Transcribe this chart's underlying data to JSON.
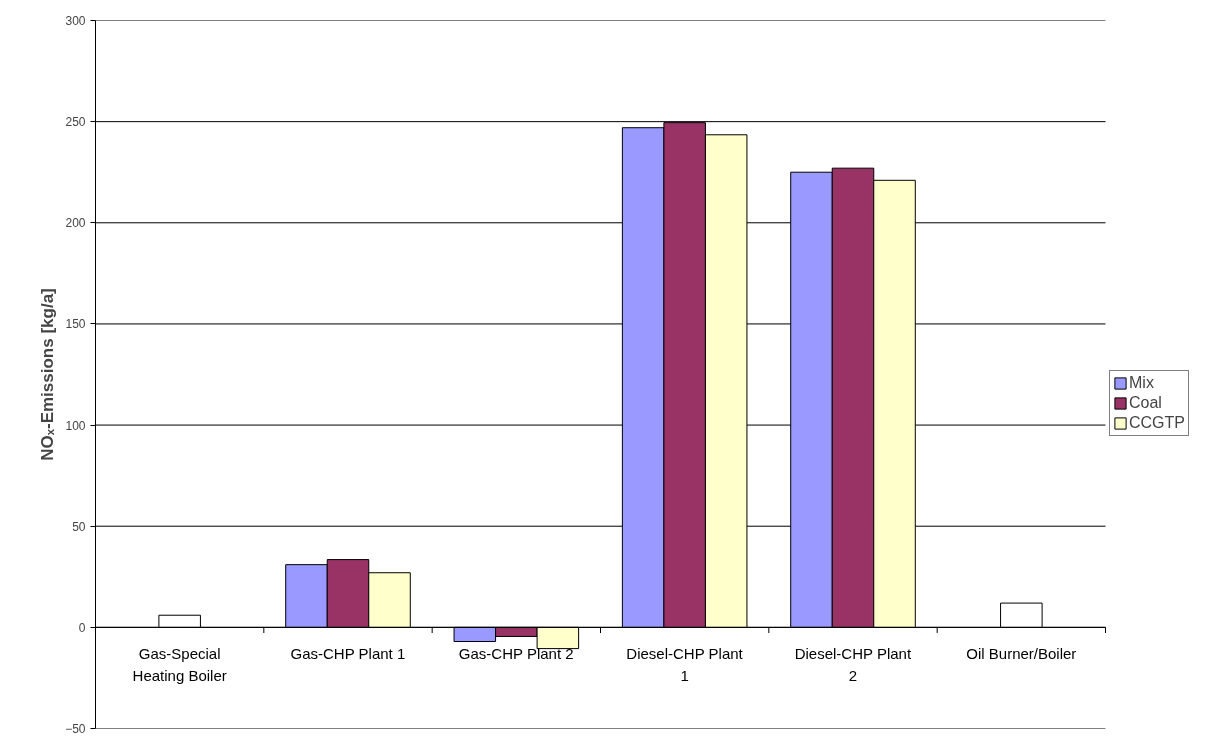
{
  "chart_data": {
    "type": "bar",
    "ylabel": "NOₓ-Emissions [kg/a]",
    "categories": [
      "Gas-Special Heating Boiler",
      "Gas-CHP Plant 1",
      "Gas-CHP Plant 2",
      "Diesel-CHP Plant 1",
      "Diesel-CHP Plant 2",
      "Oil Burner/Boiler"
    ],
    "series": [
      {
        "name": "Mix",
        "color": "#9999ff",
        "values": [
          null,
          31,
          -7,
          247,
          225,
          null
        ]
      },
      {
        "name": "Coal",
        "color": "#993366",
        "colors": [
          "#ffffff",
          "#993366",
          "#993366",
          "#993366",
          "#993366",
          "#ffffff"
        ],
        "values": [
          6,
          33.5,
          -4.5,
          249.5,
          227,
          12
        ]
      },
      {
        "name": "CCGTP",
        "color": "#ffffcc",
        "values": [
          null,
          27,
          -10.5,
          243.5,
          221,
          null
        ]
      }
    ],
    "ylim": [
      -50,
      300
    ],
    "yticks": [
      -50,
      0,
      50,
      100,
      150,
      200,
      250,
      300
    ],
    "grid": "y",
    "legend": "right"
  }
}
